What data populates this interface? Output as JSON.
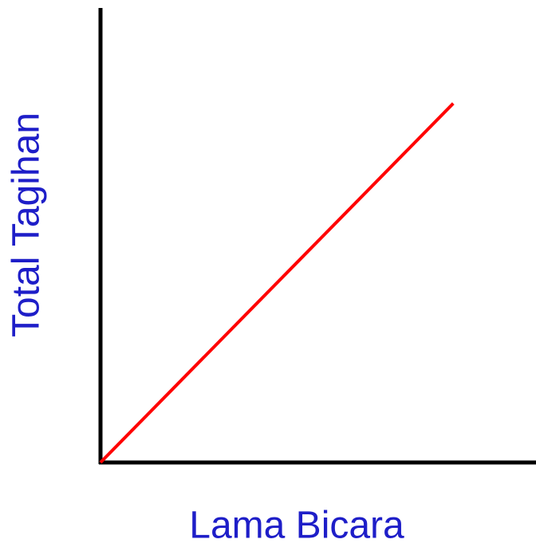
{
  "chart_data": {
    "type": "line",
    "xlabel": "Lama Bicara",
    "ylabel": "Total Tagihan",
    "x": [
      0,
      81
    ],
    "series": [
      {
        "color": "#ff0000",
        "values": [
          0,
          79
        ]
      }
    ],
    "xlim": [
      0,
      100
    ],
    "ylim": [
      0,
      100
    ]
  }
}
